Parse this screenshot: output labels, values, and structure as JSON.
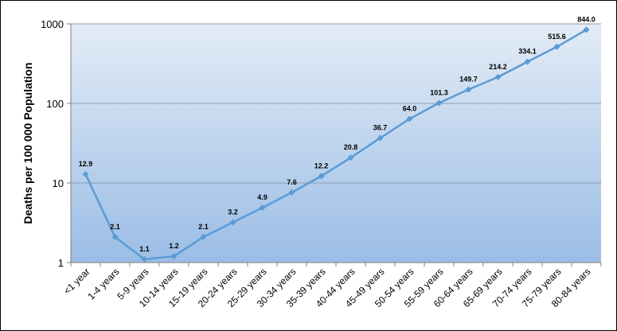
{
  "chart_data": {
    "type": "line",
    "title": "",
    "xlabel": "",
    "ylabel": "Deaths per 100 000 Population",
    "yscale": "log",
    "ylim": [
      1,
      1000
    ],
    "yticks": [
      "1",
      "10",
      "100",
      "1000"
    ],
    "grid": true,
    "legend": "none",
    "categories": [
      "<1 year",
      "1-4 years",
      "5-9 years",
      "10-14 years",
      "15-19 years",
      "20-24 years",
      "25-29 years",
      "30-34 years",
      "35-39 years",
      "40-44 years",
      "45-49 years",
      "50-54 years",
      "55-59 years",
      "60-64 years",
      "65-69 years",
      "70-74 years",
      "75-79 years",
      "80-84 years"
    ],
    "series": [
      {
        "values": [
          12.9,
          2.1,
          1.1,
          1.2,
          2.1,
          3.2,
          4.9,
          7.6,
          12.2,
          20.8,
          36.7,
          64.0,
          101.3,
          149.7,
          214.2,
          334.1,
          515.6,
          844.0
        ],
        "labels": [
          "12.9",
          "2.1",
          "1.1",
          "1.2",
          "2.1",
          "3.2",
          "4.9",
          "7.6",
          "12.2",
          "20.8",
          "36.7",
          "64.0",
          "101.3",
          "149.7",
          "214.2",
          "334.1",
          "515.6",
          "844.0"
        ],
        "color": "#5b9bd5"
      }
    ],
    "colors": {
      "plot_bg_top": "#e3ecf6",
      "plot_bg_bottom": "#9bbde6",
      "gridline": "#8a9bb0",
      "line": "#5b9bd5",
      "marker": "#5b9bd5"
    }
  }
}
